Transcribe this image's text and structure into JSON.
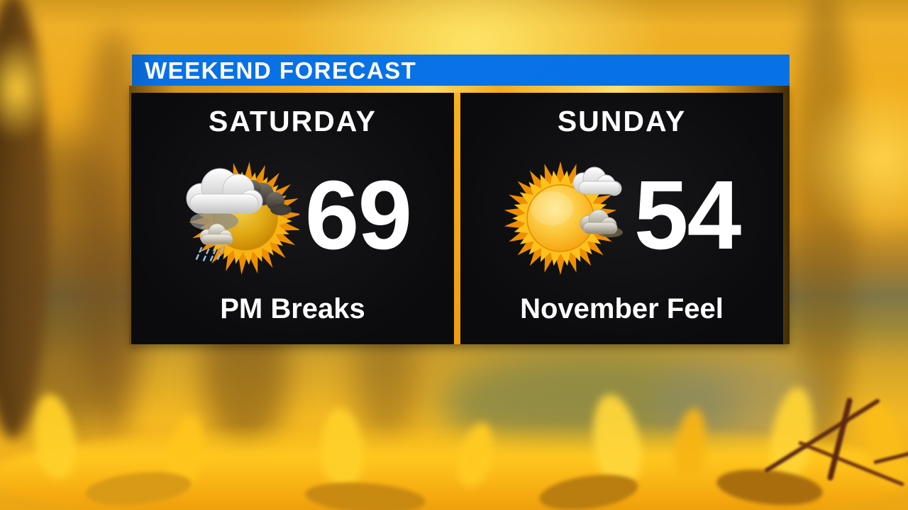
{
  "header": {
    "title": "WEEKEND FORECAST"
  },
  "panels": [
    {
      "day": "SATURDAY",
      "temp": "69",
      "condition": "PM Breaks",
      "icon": "sun-behind-clouds-with-showers"
    },
    {
      "day": "SUNDAY",
      "temp": "54",
      "condition": "November Feel",
      "icon": "mostly-sunny-with-clouds"
    }
  ],
  "colors": {
    "header_blue": "#0772e6",
    "frame_gold": "#f2ae25",
    "panel_black": "#0b0b0d",
    "text_white": "#ffffff",
    "sun_orange": "#f49b07",
    "rain_blue": "#8fc3e8"
  }
}
